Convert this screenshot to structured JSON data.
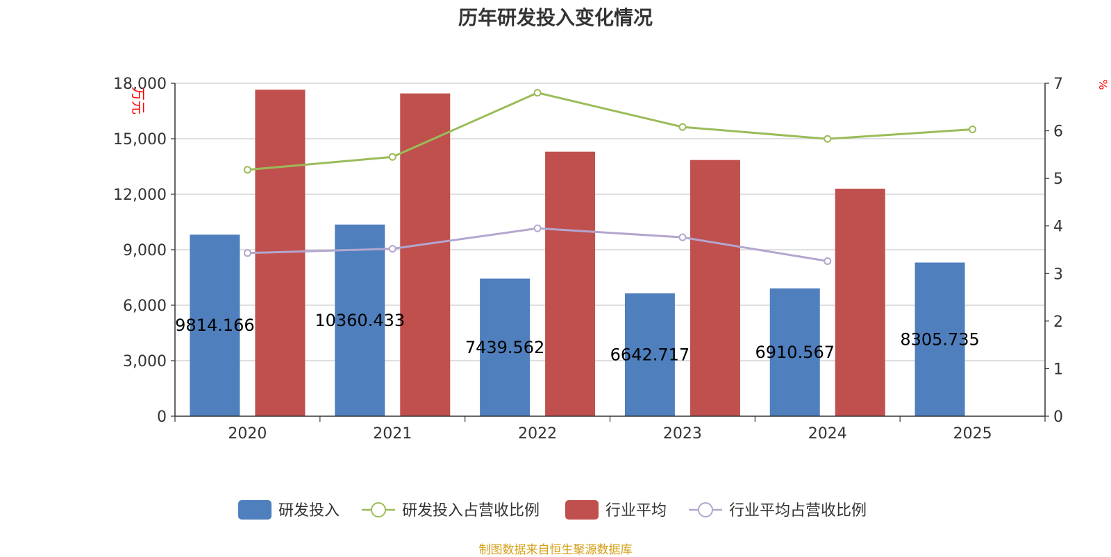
{
  "chart_data": {
    "type": "bar",
    "title": "历年研发投入变化情况",
    "categories": [
      "2020",
      "2021",
      "2022",
      "2023",
      "2024",
      "2025"
    ],
    "y_left": {
      "label": "万元",
      "min": 0,
      "max": 18000,
      "ticks": [
        0,
        3000,
        6000,
        9000,
        12000,
        15000,
        18000
      ],
      "tick_labels": [
        "0",
        "3,000",
        "6,000",
        "9,000",
        "12,000",
        "15,000",
        "18,000"
      ]
    },
    "y_right": {
      "label": "%",
      "min": 0,
      "max": 7,
      "ticks": [
        0,
        1,
        2,
        3,
        4,
        5,
        6,
        7
      ],
      "tick_labels": [
        "0",
        "1",
        "2",
        "3",
        "4",
        "5",
        "6",
        "7"
      ]
    },
    "grid": true,
    "legend_position": "bottom",
    "series": [
      {
        "name": "研发投入",
        "kind": "bar",
        "axis": "left",
        "color": "#4f7fbd",
        "values": [
          9814.166,
          10360.433,
          7439.562,
          6642.717,
          6910.567,
          8305.735
        ],
        "data_labels": [
          "9814.166",
          "10360.433",
          "7439.562",
          "6642.717",
          "6910.567",
          "8305.735"
        ]
      },
      {
        "name": "研发投入占营收比例",
        "kind": "line",
        "axis": "right",
        "color": "#9bbb59",
        "values": [
          5.18,
          5.45,
          6.8,
          6.08,
          5.83,
          6.03
        ]
      },
      {
        "name": "行业平均",
        "kind": "bar",
        "axis": "left",
        "color": "#c0504d",
        "values": [
          17650,
          17450,
          14300,
          13850,
          12300,
          null
        ]
      },
      {
        "name": "行业平均占营收比例",
        "kind": "line",
        "axis": "right",
        "color": "#b3a6cf",
        "values": [
          3.43,
          3.52,
          3.95,
          3.76,
          3.26,
          null
        ]
      }
    ]
  },
  "footer": {
    "source": "制图数据来自恒生聚源数据库"
  }
}
